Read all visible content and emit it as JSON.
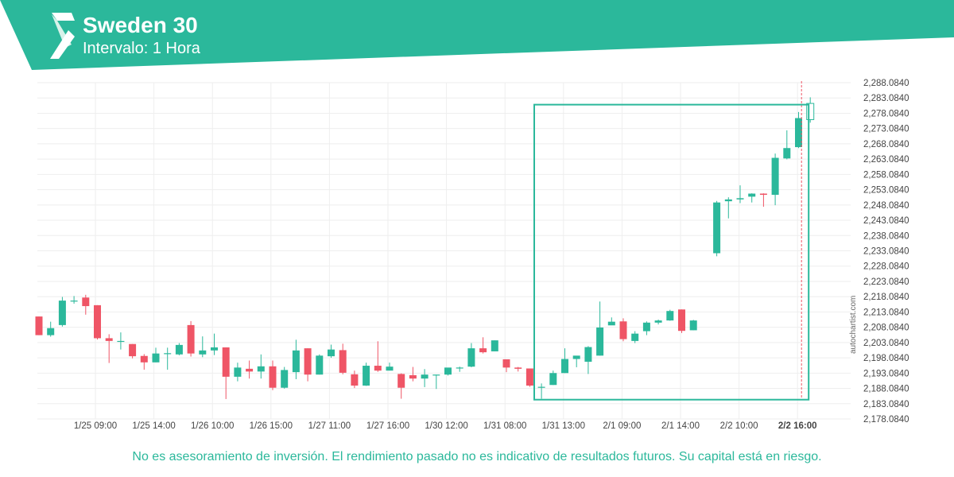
{
  "header": {
    "title": "Sweden 30",
    "subtitle": "Intervalo: 1 Hora"
  },
  "colors": {
    "brand": "#2bb89b",
    "bull": "#2bb89b",
    "bear": "#ef5566",
    "grid": "#eeeeee"
  },
  "watermark": "autochartist.com",
  "disclaimer": "No es asesoramiento de inversión. El rendimiento pasado no es indicativo de resultados futuros. Su capital está en riesgo.",
  "chart_data": {
    "type": "candlestick",
    "ylim": [
      2178.084,
      2288.084
    ],
    "y_ticks": [
      "2,288.0840",
      "2,283.0840",
      "2,278.0840",
      "2,273.0840",
      "2,268.0840",
      "2,263.0840",
      "2,258.0840",
      "2,253.0840",
      "2,248.0840",
      "2,243.0840",
      "2,238.0840",
      "2,233.0840",
      "2,228.0840",
      "2,223.0840",
      "2,218.0840",
      "2,213.0840",
      "2,208.0840",
      "2,203.0840",
      "2,198.0840",
      "2,193.0840",
      "2,188.0840",
      "2,183.0840",
      "2,178.0840"
    ],
    "x_ticks": [
      {
        "label": "1/25 09:00",
        "bold": false
      },
      {
        "label": "1/25 14:00",
        "bold": false
      },
      {
        "label": "1/26 10:00",
        "bold": false
      },
      {
        "label": "1/26 15:00",
        "bold": false
      },
      {
        "label": "1/27 11:00",
        "bold": false
      },
      {
        "label": "1/27 16:00",
        "bold": false
      },
      {
        "label": "1/30 12:00",
        "bold": false
      },
      {
        "label": "1/31 08:00",
        "bold": false
      },
      {
        "label": "1/31 13:00",
        "bold": false
      },
      {
        "label": "2/1 09:00",
        "bold": false
      },
      {
        "label": "2/1 14:00",
        "bold": false
      },
      {
        "label": "2/2 10:00",
        "bold": false
      },
      {
        "label": "2/2 16:00",
        "bold": true
      }
    ],
    "candles": [
      {
        "o": 2211.6,
        "h": 2211.6,
        "l": 2205.5,
        "c": 2205.5
      },
      {
        "o": 2205.5,
        "h": 2209.9,
        "l": 2205.0,
        "c": 2207.8
      },
      {
        "o": 2208.8,
        "h": 2218.0,
        "l": 2208.3,
        "c": 2216.8
      },
      {
        "o": 2216.8,
        "h": 2218.3,
        "l": 2215.8,
        "c": 2216.8
      },
      {
        "o": 2217.8,
        "h": 2218.7,
        "l": 2212.2,
        "c": 2215.0
      },
      {
        "o": 2215.3,
        "h": 2215.3,
        "l": 2204.1,
        "c": 2204.5
      },
      {
        "o": 2204.5,
        "h": 2205.8,
        "l": 2196.4,
        "c": 2203.6
      },
      {
        "o": 2203.6,
        "h": 2206.4,
        "l": 2200.8,
        "c": 2203.6
      },
      {
        "o": 2202.6,
        "h": 2202.6,
        "l": 2197.9,
        "c": 2198.6
      },
      {
        "o": 2198.7,
        "h": 2199.3,
        "l": 2194.2,
        "c": 2196.6
      },
      {
        "o": 2196.6,
        "h": 2201.4,
        "l": 2196.6,
        "c": 2199.5
      },
      {
        "o": 2199.5,
        "h": 2201.4,
        "l": 2194.2,
        "c": 2199.6
      },
      {
        "o": 2199.2,
        "h": 2202.9,
        "l": 2198.9,
        "c": 2202.3
      },
      {
        "o": 2208.8,
        "h": 2210.1,
        "l": 2198.5,
        "c": 2199.5
      },
      {
        "o": 2199.2,
        "h": 2205.1,
        "l": 2198.3,
        "c": 2200.5
      },
      {
        "o": 2200.5,
        "h": 2206.0,
        "l": 2199.0,
        "c": 2201.5
      },
      {
        "o": 2201.5,
        "h": 2201.5,
        "l": 2184.6,
        "c": 2191.9
      },
      {
        "o": 2191.9,
        "h": 2196.5,
        "l": 2190.4,
        "c": 2194.9
      },
      {
        "o": 2194.5,
        "h": 2197.2,
        "l": 2191.3,
        "c": 2193.6
      },
      {
        "o": 2193.6,
        "h": 2199.2,
        "l": 2191.3,
        "c": 2195.3
      },
      {
        "o": 2195.3,
        "h": 2197.2,
        "l": 2187.5,
        "c": 2188.3
      },
      {
        "o": 2188.3,
        "h": 2195.1,
        "l": 2188.0,
        "c": 2194.1
      },
      {
        "o": 2193.4,
        "h": 2204.0,
        "l": 2191.1,
        "c": 2200.5
      },
      {
        "o": 2201.2,
        "h": 2201.2,
        "l": 2190.4,
        "c": 2192.6
      },
      {
        "o": 2192.6,
        "h": 2199.2,
        "l": 2192.6,
        "c": 2198.8
      },
      {
        "o": 2198.6,
        "h": 2202.4,
        "l": 2198.1,
        "c": 2200.8
      },
      {
        "o": 2200.6,
        "h": 2202.7,
        "l": 2192.7,
        "c": 2193.2
      },
      {
        "o": 2192.7,
        "h": 2193.9,
        "l": 2188.2,
        "c": 2189.0
      },
      {
        "o": 2189.0,
        "h": 2196.5,
        "l": 2188.9,
        "c": 2195.5
      },
      {
        "o": 2195.5,
        "h": 2203.5,
        "l": 2193.5,
        "c": 2193.9
      },
      {
        "o": 2193.9,
        "h": 2196.5,
        "l": 2193.9,
        "c": 2195.2
      },
      {
        "o": 2192.8,
        "h": 2193.0,
        "l": 2184.7,
        "c": 2188.3
      },
      {
        "o": 2192.4,
        "h": 2195.1,
        "l": 2190.4,
        "c": 2191.3
      },
      {
        "o": 2191.3,
        "h": 2194.4,
        "l": 2188.5,
        "c": 2192.6
      },
      {
        "o": 2192.6,
        "h": 2192.6,
        "l": 2187.9,
        "c": 2192.6
      },
      {
        "o": 2192.6,
        "h": 2194.4,
        "l": 2192.3,
        "c": 2194.9
      },
      {
        "o": 2194.9,
        "h": 2195.2,
        "l": 2193.5,
        "c": 2194.9
      },
      {
        "o": 2195.2,
        "h": 2202.9,
        "l": 2195.0,
        "c": 2201.2
      },
      {
        "o": 2201.2,
        "h": 2204.8,
        "l": 2199.5,
        "c": 2199.9
      },
      {
        "o": 2200.2,
        "h": 2203.8,
        "l": 2200.2,
        "c": 2203.8
      },
      {
        "o": 2197.6,
        "h": 2197.6,
        "l": 2193.4,
        "c": 2194.9
      },
      {
        "o": 2194.9,
        "h": 2195.1,
        "l": 2193.6,
        "c": 2194.5
      },
      {
        "o": 2194.6,
        "h": 2194.6,
        "l": 2188.6,
        "c": 2189.0
      },
      {
        "o": 2188.6,
        "h": 2189.7,
        "l": 2184.7,
        "c": 2188.6
      },
      {
        "o": 2189.2,
        "h": 2193.9,
        "l": 2189.2,
        "c": 2193.1
      },
      {
        "o": 2193.1,
        "h": 2201.2,
        "l": 2193.1,
        "c": 2197.7
      },
      {
        "o": 2197.7,
        "h": 2198.6,
        "l": 2195.0,
        "c": 2198.8
      },
      {
        "o": 2196.8,
        "h": 2201.9,
        "l": 2192.8,
        "c": 2201.6
      },
      {
        "o": 2198.8,
        "h": 2216.5,
        "l": 2198.8,
        "c": 2208.0
      },
      {
        "o": 2208.7,
        "h": 2211.3,
        "l": 2209.0,
        "c": 2209.9
      },
      {
        "o": 2210.0,
        "h": 2211.0,
        "l": 2203.5,
        "c": 2204.2
      },
      {
        "o": 2203.6,
        "h": 2206.8,
        "l": 2202.9,
        "c": 2206.0
      },
      {
        "o": 2206.8,
        "h": 2210.0,
        "l": 2205.5,
        "c": 2209.6
      },
      {
        "o": 2209.6,
        "h": 2210.6,
        "l": 2209.0,
        "c": 2210.3
      },
      {
        "o": 2210.3,
        "h": 2213.8,
        "l": 2210.2,
        "c": 2213.4
      },
      {
        "o": 2213.9,
        "h": 2213.9,
        "l": 2206.2,
        "c": 2206.9
      },
      {
        "o": 2207.1,
        "h": 2210.5,
        "l": 2207.1,
        "c": 2210.3
      },
      null,
      {
        "o": 2232.3,
        "h": 2249.4,
        "l": 2231.3,
        "c": 2248.9
      },
      {
        "o": 2249.3,
        "h": 2250.6,
        "l": 2243.7,
        "c": 2249.9
      },
      {
        "o": 2249.9,
        "h": 2254.5,
        "l": 2248.7,
        "c": 2250.3
      },
      {
        "o": 2250.8,
        "h": 2251.9,
        "l": 2248.9,
        "c": 2251.8
      },
      {
        "o": 2251.8,
        "h": 2251.9,
        "l": 2247.5,
        "c": 2251.4
      },
      {
        "o": 2251.4,
        "h": 2264.9,
        "l": 2248.0,
        "c": 2263.5
      },
      {
        "o": 2263.3,
        "h": 2272.5,
        "l": 2263.0,
        "c": 2266.7
      },
      {
        "o": 2267.0,
        "h": 2278.5,
        "l": 2266.7,
        "c": 2276.5
      },
      {
        "o": 2276.0,
        "h": 2283.3,
        "l": 2275.0,
        "c": 2281.3
      }
    ],
    "last_candle_hollow": true,
    "pattern": {
      "type": "rectangle",
      "top": 2280.9,
      "bottom": 2184.4
    }
  }
}
